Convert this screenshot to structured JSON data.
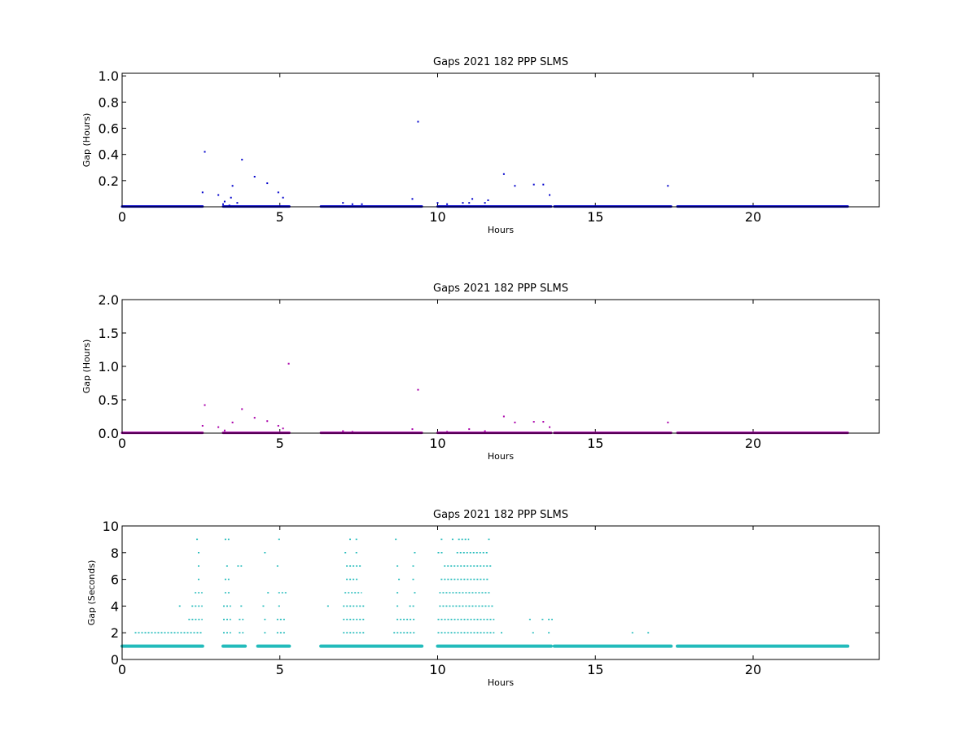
{
  "chart_data": [
    {
      "type": "scatter",
      "title": "Gaps 2021 182 PPP  SLMS",
      "xlabel": "Hours",
      "ylabel": "Gap (Hours)",
      "xlim": [
        0,
        24
      ],
      "ylim": [
        0,
        1.02
      ],
      "xticks": [
        0,
        5,
        10,
        15,
        20
      ],
      "xtick_labels": [
        "0",
        "5",
        "10",
        "15",
        "20"
      ],
      "yticks": [
        0.2,
        0.4,
        0.6,
        0.8,
        1.0
      ],
      "ytick_labels": [
        "0.2",
        "0.4",
        "0.6",
        "0.8",
        "1.0"
      ],
      "grid": false,
      "color": "#0000cc",
      "baseline_segments": [
        [
          0,
          2.55
        ],
        [
          3.2,
          5.3
        ],
        [
          6.3,
          9.5
        ],
        [
          10.0,
          13.6
        ],
        [
          13.7,
          17.4
        ],
        [
          17.6,
          23.0
        ]
      ],
      "baseline_value": 0.002,
      "x": [
        2.55,
        2.62,
        3.05,
        3.2,
        3.25,
        3.4,
        3.45,
        3.5,
        3.65,
        3.8,
        4.2,
        4.6,
        4.95,
        5.1,
        7.0,
        7.3,
        7.6,
        9.2,
        9.38,
        10.0,
        10.3,
        10.8,
        11.0,
        11.1,
        11.5,
        11.6,
        12.1,
        12.45,
        13.05,
        13.35,
        13.55,
        17.3
      ],
      "y": [
        0.11,
        0.42,
        0.09,
        0.02,
        0.04,
        0.01,
        0.07,
        0.16,
        0.03,
        0.36,
        0.23,
        0.18,
        0.11,
        0.07,
        0.03,
        0.02,
        0.02,
        0.06,
        0.65,
        0.03,
        0.02,
        0.03,
        0.03,
        0.06,
        0.03,
        0.05,
        0.25,
        0.16,
        0.17,
        0.17,
        0.09,
        0.16
      ]
    },
    {
      "type": "scatter",
      "title": "Gaps 2021 182 PPP  SLMS",
      "xlabel": "Hours",
      "ylabel": "Gap (Hours)",
      "xlim": [
        0,
        24
      ],
      "ylim": [
        0,
        2.0
      ],
      "xticks": [
        0,
        5,
        10,
        15,
        20
      ],
      "xtick_labels": [
        "0",
        "5",
        "10",
        "15",
        "20"
      ],
      "yticks": [
        0,
        0.5,
        1.0,
        1.5,
        2.0
      ],
      "ytick_labels": [
        "0.0",
        "0.5",
        "1.0",
        "1.5",
        "2.0"
      ],
      "grid": false,
      "color": "#aa00aa",
      "baseline_segments": [
        [
          0,
          2.55
        ],
        [
          3.2,
          5.3
        ],
        [
          6.3,
          9.5
        ],
        [
          10.0,
          13.6
        ],
        [
          13.7,
          17.4
        ],
        [
          17.6,
          23.0
        ]
      ],
      "baseline_value": 0.005,
      "x": [
        2.55,
        2.62,
        3.05,
        3.25,
        3.5,
        3.8,
        4.2,
        4.6,
        4.95,
        5.1,
        5.28,
        7.0,
        7.3,
        9.2,
        9.38,
        10.3,
        11.0,
        11.5,
        12.1,
        12.45,
        13.05,
        13.35,
        13.55,
        17.3
      ],
      "y": [
        0.11,
        0.42,
        0.09,
        0.04,
        0.16,
        0.36,
        0.23,
        0.18,
        0.11,
        0.07,
        1.04,
        0.03,
        0.02,
        0.06,
        0.65,
        0.02,
        0.06,
        0.03,
        0.25,
        0.16,
        0.17,
        0.17,
        0.09,
        0.16
      ]
    },
    {
      "type": "scatter",
      "title": "Gaps 2021 182 PPP  SLMS",
      "xlabel": "Hours",
      "ylabel": "Gap (Seconds)",
      "xlim": [
        0,
        24
      ],
      "ylim": [
        0,
        10
      ],
      "xticks": [
        0,
        5,
        10,
        15,
        20
      ],
      "xtick_labels": [
        "0",
        "5",
        "10",
        "15",
        "20"
      ],
      "yticks": [
        0,
        2,
        4,
        6,
        8,
        10
      ],
      "ytick_labels": [
        "0",
        "2",
        "4",
        "6",
        "8",
        "10"
      ],
      "grid": false,
      "color": "#22bbbb",
      "baseline_segments": [
        [
          0,
          2.55
        ],
        [
          3.2,
          3.9
        ],
        [
          4.3,
          5.3
        ],
        [
          6.3,
          9.5
        ],
        [
          10.0,
          13.6
        ],
        [
          13.7,
          17.4
        ],
        [
          17.6,
          23.0
        ]
      ],
      "baseline_value": 1,
      "level_ranges": [
        {
          "value": 2,
          "ranges": [
            [
              0.4,
              2.55
            ],
            [
              3.2,
              3.45
            ],
            [
              3.7,
              3.85
            ],
            [
              4.5,
              4.55
            ],
            [
              4.9,
              5.2
            ],
            [
              7.0,
              7.7
            ],
            [
              8.6,
              9.3
            ],
            [
              10.0,
              11.8
            ],
            [
              12.0,
              12.05
            ],
            [
              13.0,
              13.05
            ],
            [
              13.5,
              13.55
            ],
            [
              16.15,
              16.2
            ],
            [
              16.65,
              16.7
            ]
          ]
        },
        {
          "value": 3,
          "ranges": [
            [
              2.1,
              2.55
            ],
            [
              3.2,
              3.45
            ],
            [
              3.7,
              3.85
            ],
            [
              4.5,
              4.6
            ],
            [
              4.9,
              5.2
            ],
            [
              7.0,
              7.7
            ],
            [
              8.7,
              9.3
            ],
            [
              10.0,
              11.8
            ],
            [
              12.9,
              12.95
            ],
            [
              13.3,
              13.35
            ],
            [
              13.5,
              13.65
            ]
          ]
        },
        {
          "value": 4,
          "ranges": [
            [
              1.8,
              1.85
            ],
            [
              2.2,
              2.55
            ],
            [
              3.2,
              3.45
            ],
            [
              3.75,
              3.85
            ],
            [
              4.45,
              4.55
            ],
            [
              4.95,
              5.05
            ],
            [
              6.5,
              6.55
            ],
            [
              7.0,
              7.7
            ],
            [
              8.7,
              8.8
            ],
            [
              9.1,
              9.3
            ],
            [
              10.05,
              11.8
            ]
          ]
        },
        {
          "value": 5,
          "ranges": [
            [
              2.3,
              2.55
            ],
            [
              3.25,
              3.45
            ],
            [
              4.6,
              4.65
            ],
            [
              4.95,
              5.25
            ],
            [
              7.05,
              7.6
            ],
            [
              8.7,
              8.8
            ],
            [
              9.25,
              9.3
            ],
            [
              10.05,
              11.7
            ]
          ]
        },
        {
          "value": 6,
          "ranges": [
            [
              2.4,
              2.5
            ],
            [
              3.25,
              3.4
            ],
            [
              7.1,
              7.5
            ],
            [
              8.75,
              8.8
            ],
            [
              9.2,
              9.3
            ],
            [
              10.1,
              11.6
            ]
          ]
        },
        {
          "value": 7,
          "ranges": [
            [
              2.4,
              2.45
            ],
            [
              3.3,
              3.35
            ],
            [
              3.65,
              3.8
            ],
            [
              4.9,
              4.95
            ],
            [
              7.1,
              7.6
            ],
            [
              8.7,
              8.75
            ],
            [
              9.2,
              9.3
            ],
            [
              10.2,
              11.7
            ]
          ]
        },
        {
          "value": 8,
          "ranges": [
            [
              2.4,
              2.5
            ],
            [
              4.5,
              4.55
            ],
            [
              7.05,
              7.1
            ],
            [
              7.4,
              7.45
            ],
            [
              9.25,
              9.3
            ],
            [
              10.0,
              10.2
            ],
            [
              10.6,
              11.6
            ]
          ]
        },
        {
          "value": 9,
          "ranges": [
            [
              2.35,
              2.45
            ],
            [
              3.25,
              3.4
            ],
            [
              4.95,
              5.0
            ],
            [
              7.2,
              7.25
            ],
            [
              7.4,
              7.45
            ],
            [
              8.65,
              8.7
            ],
            [
              10.1,
              10.15
            ],
            [
              10.45,
              10.5
            ],
            [
              10.65,
              11.0
            ],
            [
              11.6,
              11.65
            ]
          ]
        }
      ]
    }
  ]
}
